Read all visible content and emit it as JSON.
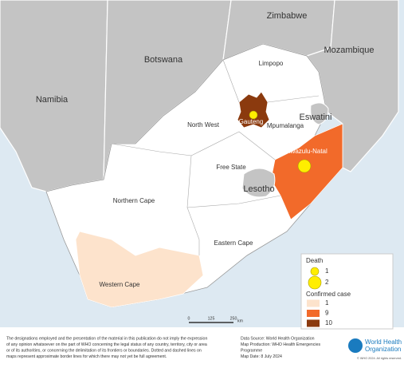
{
  "map": {
    "countries": [
      "Zimbabwe",
      "Botswana",
      "Mozambique",
      "Namibia",
      "Eswatini",
      "Lesotho"
    ],
    "provinces": [
      "Limpopo",
      "North West",
      "Gauteng",
      "Mpumalanga",
      "Free State",
      "Kwazulu-Natal",
      "Northern Cape",
      "Eastern Cape",
      "Western Cape"
    ]
  },
  "legend": {
    "death_title": "Death",
    "death": [
      {
        "value": 1,
        "label": "1"
      },
      {
        "value": 2,
        "label": "2"
      }
    ],
    "case_title": "Confirmed case",
    "cases": [
      {
        "label": "1",
        "color": "#fde3cc"
      },
      {
        "label": "9",
        "color": "#f26a2a"
      },
      {
        "label": "10",
        "color": "#8b3a0e"
      }
    ]
  },
  "scale": {
    "ticks": [
      "0",
      "125",
      "250"
    ],
    "unit": "km"
  },
  "footer": {
    "disclaimer": [
      "The designations employed and the presentation of the material in this publication do not imply the expression",
      "of any opinion whatsoever on the part of WHO concerning the legal status of any country, territory, city or area",
      "or of its authorities, or concerning the delimitation of its frontiers or boundaries. Dotted and dashed lines on",
      "maps represent approximate border lines for which there may not yet be full agreement."
    ],
    "source": [
      "Data Source: World Health Organization",
      "Map Production: WHO Health Emergencies",
      "Programme",
      "Map Date: 8 July 2024"
    ],
    "org": [
      "World Health",
      "Organization"
    ],
    "copyright": "© WHO 2024. All rights reserved."
  }
}
